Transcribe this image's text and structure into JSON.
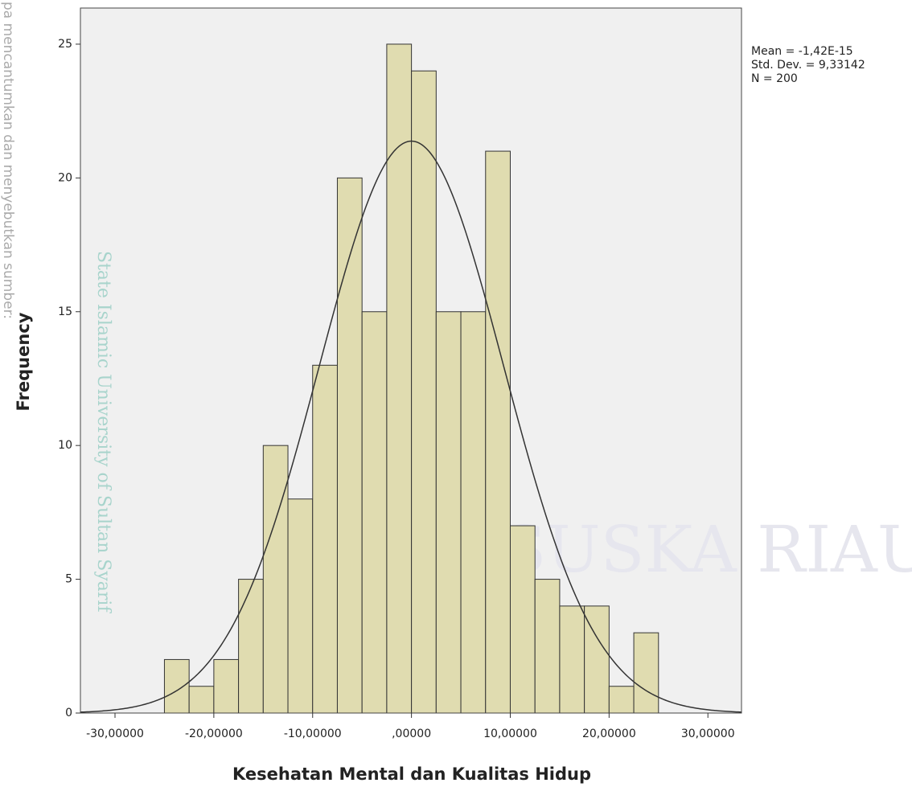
{
  "chart_data": {
    "type": "histogram",
    "x_label": "Kesehatan Mental dan Kualitas Hidup",
    "y_label": "Frequency",
    "bins": [
      -25,
      -22.5,
      -20,
      -17.5,
      -15,
      -12.5,
      -10,
      -7.5,
      -5,
      -2.5,
      0,
      2.5,
      5,
      7.5,
      10,
      12.5,
      15,
      17.5,
      20,
      22.5,
      25
    ],
    "values": [
      2,
      1,
      2,
      5,
      10,
      8,
      13,
      20,
      15,
      25,
      24,
      15,
      15,
      21,
      7,
      5,
      4,
      4,
      1,
      3
    ],
    "color": "#e0dcb0",
    "xlim": [
      -33.5,
      33.4
    ],
    "ylim": [
      0,
      26.35
    ],
    "xticks": [
      {
        "value": -30,
        "label": "-30,00000"
      },
      {
        "value": -20,
        "label": "-20,00000"
      },
      {
        "value": -10,
        "label": "-10,00000"
      },
      {
        "value": 0,
        "label": ",00000"
      },
      {
        "value": 10,
        "label": "10,00000"
      },
      {
        "value": 20,
        "label": "20,00000"
      },
      {
        "value": 30,
        "label": "30,00000"
      }
    ],
    "yticks": [
      0,
      5,
      10,
      15,
      20,
      25
    ],
    "normal_curve": {
      "mean": -1.42e-15,
      "std_dev": 9.33142,
      "n": 200
    },
    "stats_text": [
      "Mean = -1,42E-15",
      "Std. Dev. = 9,33142",
      "N = 200"
    ],
    "watermarks": [
      "pa mencantumkan dan menyebutkan sumber:",
      "State Islamic University of Sultan Syarif",
      "UIN SUSKA RIAU"
    ]
  }
}
